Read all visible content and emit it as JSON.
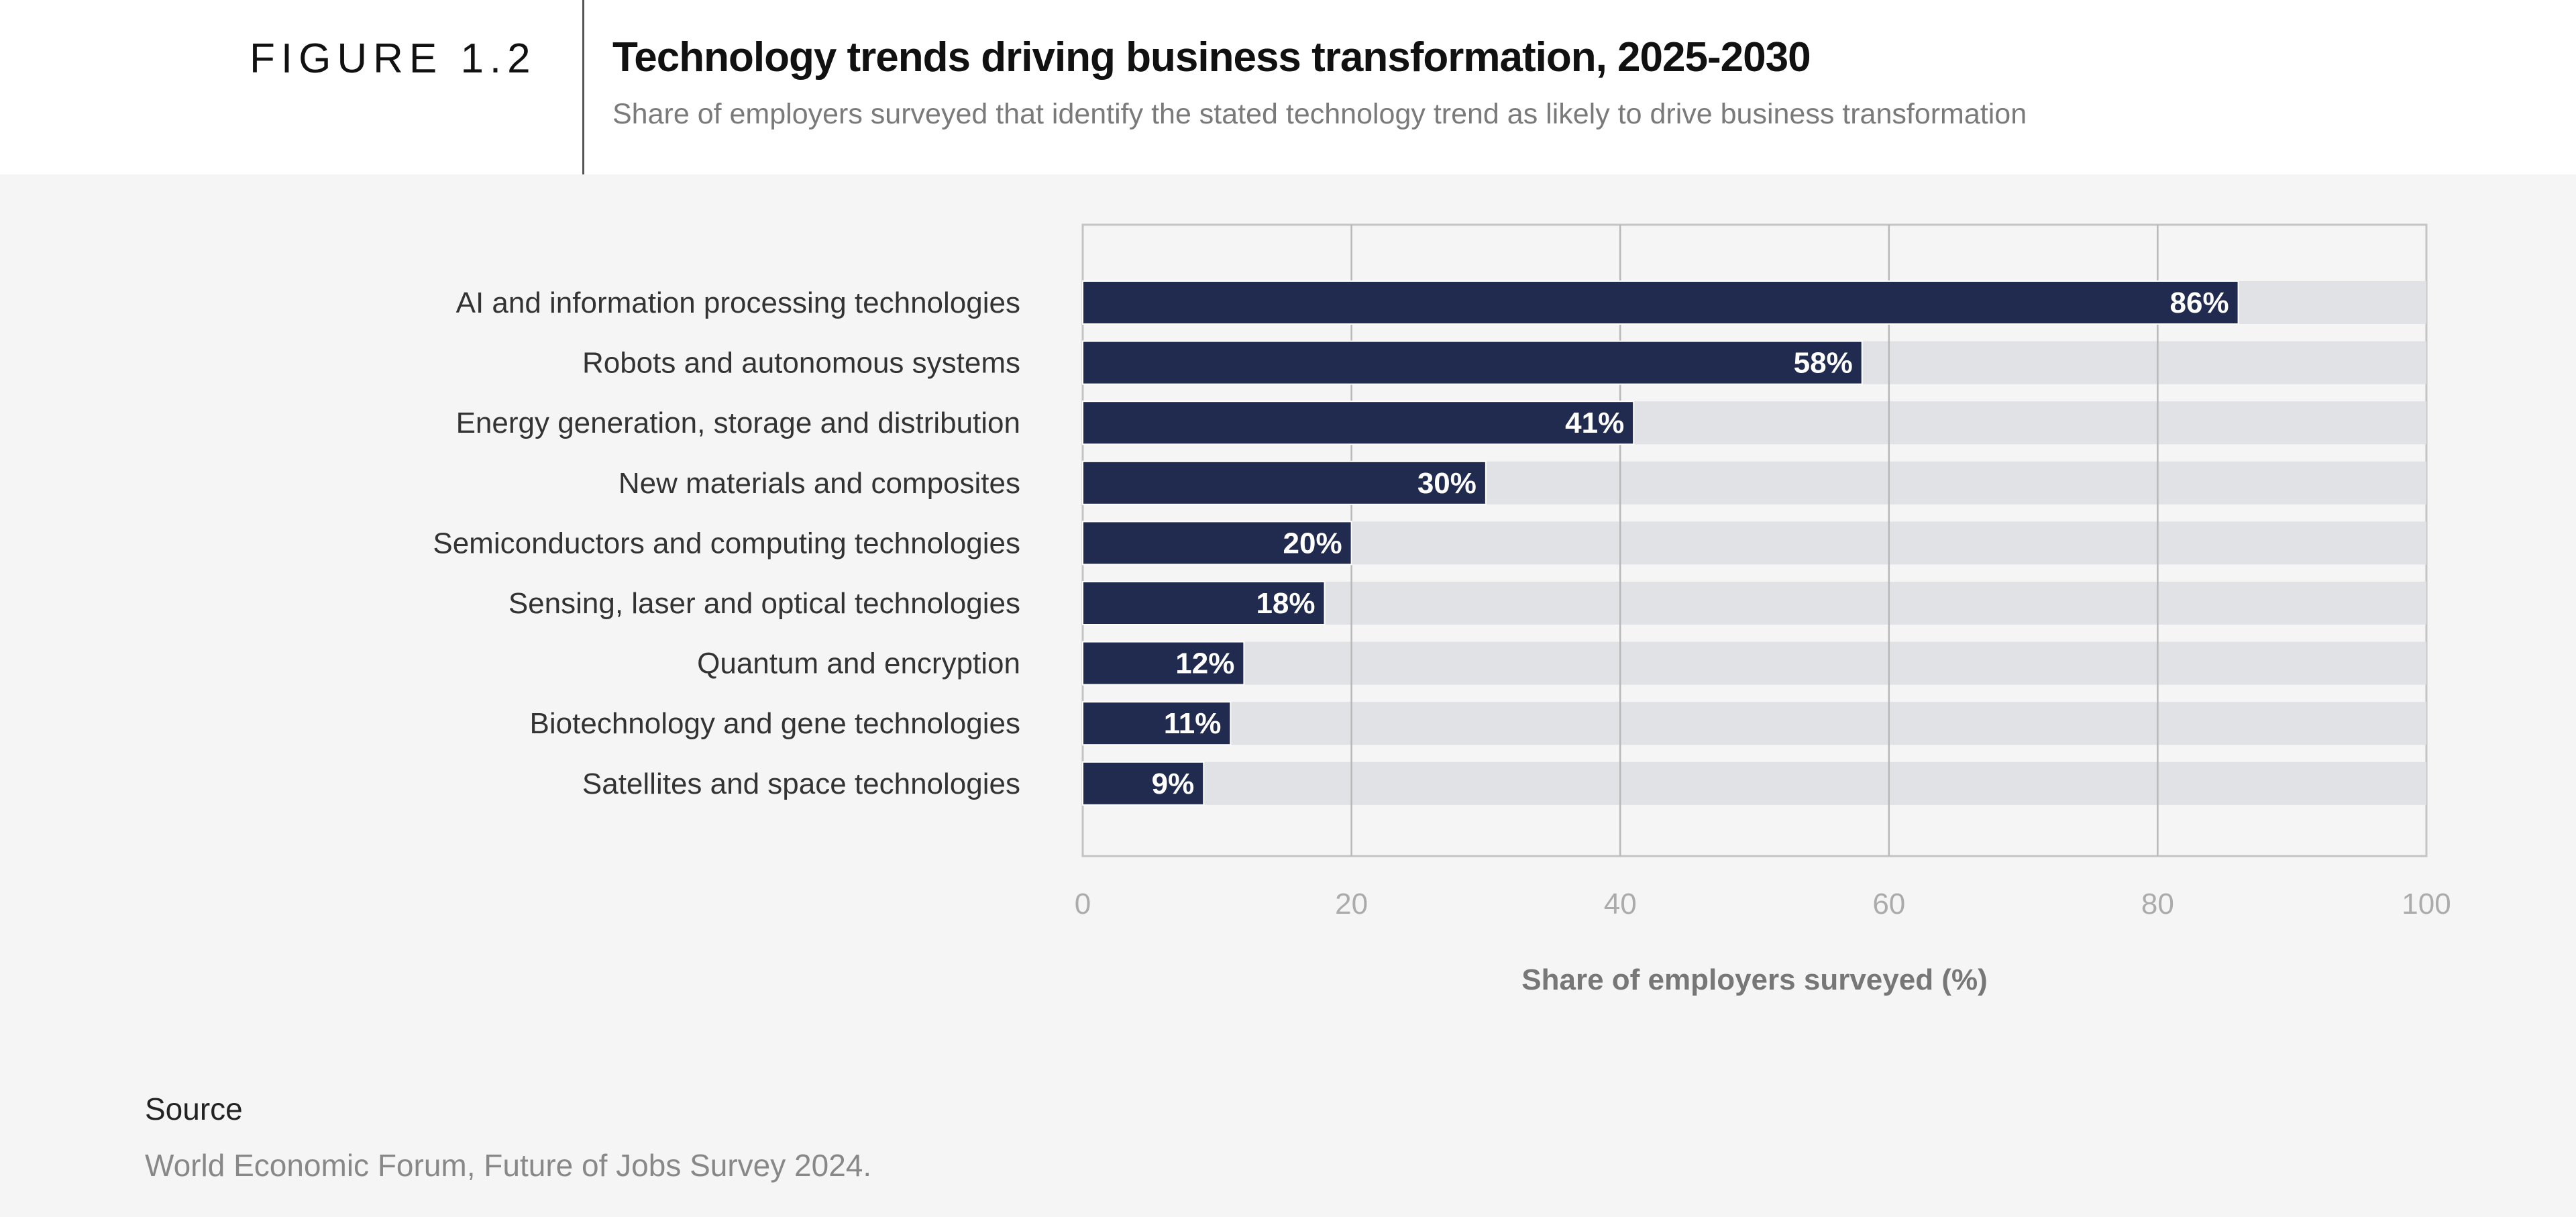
{
  "header": {
    "figure_label": "FIGURE 1.2",
    "title": "Technology trends driving business transformation, 2025-2030",
    "subtitle": "Share of employers surveyed that identify the stated technology trend as likely to drive business transformation"
  },
  "chart_data": {
    "type": "bar",
    "orientation": "horizontal",
    "title": "Technology trends driving business transformation, 2025-2030",
    "xlabel": "Share of employers surveyed (%)",
    "ylabel": "",
    "xlim": [
      0,
      100
    ],
    "xticks": [
      0,
      20,
      40,
      60,
      80,
      100
    ],
    "grid": true,
    "categories": [
      "AI and information processing technologies",
      "Robots and autonomous systems",
      "Energy generation, storage and distribution",
      "New materials and composites",
      "Semiconductors and computing technologies",
      "Sensing, laser and optical technologies",
      "Quantum and encryption",
      "Biotechnology and gene technologies",
      "Satellites and space technologies"
    ],
    "values": [
      86,
      58,
      41,
      30,
      20,
      18,
      12,
      11,
      9
    ],
    "data_labels": [
      "86%",
      "58%",
      "41%",
      "30%",
      "20%",
      "18%",
      "12%",
      "11%",
      "9%"
    ],
    "colors": {
      "bar": "#212b4f",
      "track": "#e1e2e5",
      "grid": "#b8b8b8"
    }
  },
  "source": {
    "heading": "Source",
    "text": "World Economic Forum, Future of Jobs Survey 2024."
  }
}
